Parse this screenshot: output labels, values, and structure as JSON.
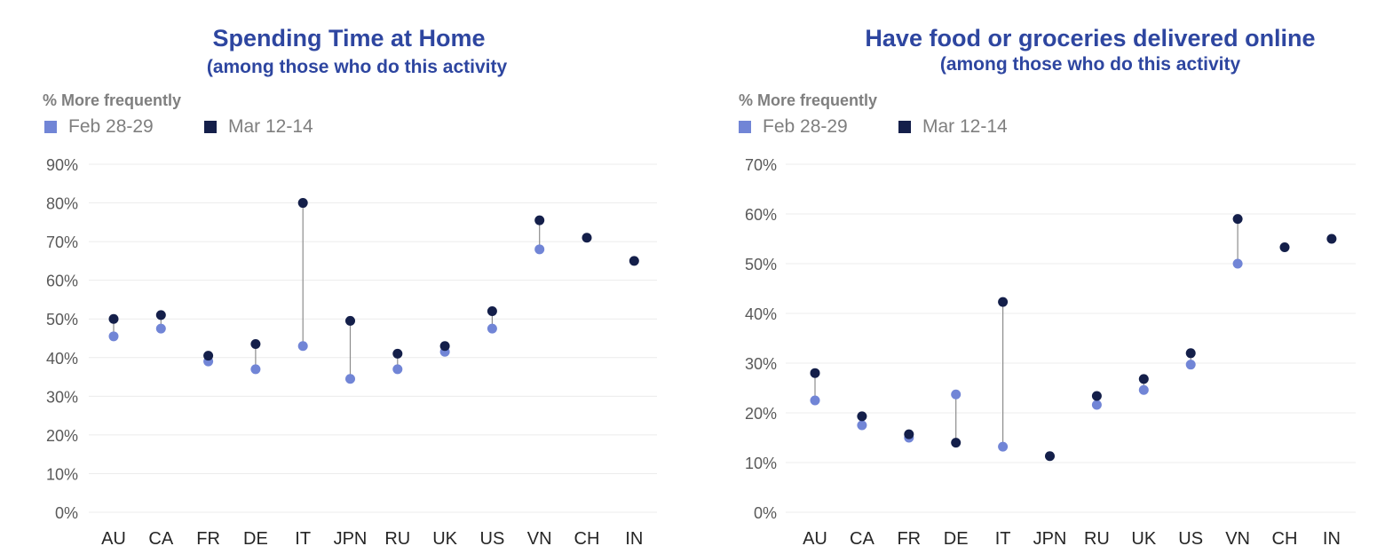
{
  "chart_data": [
    {
      "type": "scatter",
      "title": "Spending Time at Home",
      "subtitle": "(among those who do this activity",
      "ylabel": "% More frequently",
      "categories": [
        "AU",
        "CA",
        "FR",
        "DE",
        "IT",
        "JPN",
        "RU",
        "UK",
        "US",
        "VN",
        "CH",
        "IN"
      ],
      "ylim": [
        0,
        90
      ],
      "yticks": [
        0,
        10,
        20,
        30,
        40,
        50,
        60,
        70,
        80,
        90
      ],
      "tick_suffix": "%",
      "grid": true,
      "legend": "top-left",
      "series": [
        {
          "name": "Feb 28-29",
          "color": "#7185d6",
          "values": [
            45.5,
            47.5,
            39,
            37,
            43,
            34.5,
            37,
            41.5,
            47.5,
            68,
            null,
            null
          ]
        },
        {
          "name": "Mar 12-14",
          "color": "#141f4a",
          "values": [
            50,
            51,
            40.5,
            43.5,
            80,
            49.5,
            41,
            43,
            52,
            75.5,
            71,
            65
          ]
        }
      ]
    },
    {
      "type": "scatter",
      "title": "Have food or groceries delivered online",
      "subtitle": "(among those who do this activity",
      "ylabel": "% More frequently",
      "categories": [
        "AU",
        "CA",
        "FR",
        "DE",
        "IT",
        "JPN",
        "RU",
        "UK",
        "US",
        "VN",
        "CH",
        "IN"
      ],
      "ylim": [
        0,
        70
      ],
      "yticks": [
        0,
        10,
        20,
        30,
        40,
        50,
        60,
        70
      ],
      "tick_suffix": "%",
      "grid": true,
      "legend": "top-left",
      "series": [
        {
          "name": "Feb 28-29",
          "color": "#7185d6",
          "values": [
            22.5,
            17.5,
            15,
            23.7,
            13.2,
            null,
            21.6,
            24.6,
            29.7,
            50,
            null,
            null
          ]
        },
        {
          "name": "Mar 12-14",
          "color": "#141f4a",
          "values": [
            28,
            19.3,
            15.7,
            14,
            42.3,
            11.3,
            23.4,
            26.8,
            32,
            59,
            53.3,
            55
          ]
        }
      ]
    }
  ]
}
